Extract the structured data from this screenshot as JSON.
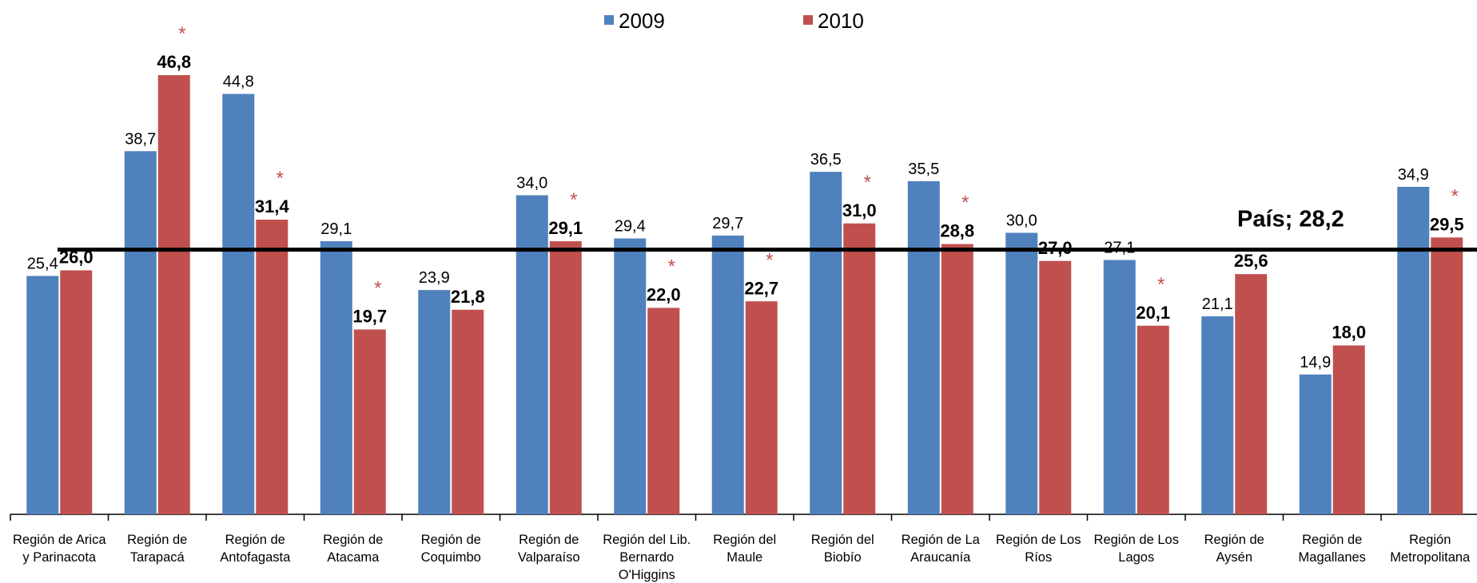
{
  "chart_data": {
    "type": "bar",
    "categories": [
      [
        "Región de Arica",
        "y Parinacota"
      ],
      [
        "Región de",
        "Tarapacá"
      ],
      [
        "Región de",
        "Antofagasta"
      ],
      [
        "Región de",
        "Atacama"
      ],
      [
        "Región de",
        "Coquimbo"
      ],
      [
        "Región de",
        "Valparaíso"
      ],
      [
        "Región del Lib.",
        "Bernardo",
        "O'Higgins"
      ],
      [
        "Región del",
        "Maule"
      ],
      [
        "Región del",
        "Biobío"
      ],
      [
        "Región de La",
        "Araucanía"
      ],
      [
        "Región de Los",
        "Ríos"
      ],
      [
        "Región de Los",
        "Lagos"
      ],
      [
        "Región de",
        "Aysén"
      ],
      [
        "Región de",
        "Magallanes"
      ],
      [
        "Región",
        "Metropolitana"
      ]
    ],
    "series": [
      {
        "name": "2009",
        "color": "#4f81bd",
        "values": [
          25.4,
          38.7,
          44.8,
          29.1,
          23.9,
          34.0,
          29.4,
          29.7,
          36.5,
          35.5,
          30.0,
          27.1,
          21.1,
          14.9,
          34.9
        ],
        "labels": [
          "25,4",
          "38,7",
          "44,8",
          "29,1",
          "23,9",
          "34,0",
          "29,4",
          "29,7",
          "36,5",
          "35,5",
          "30,0",
          "27,1",
          "21,1",
          "14,9",
          "34,9"
        ]
      },
      {
        "name": "2010",
        "color": "#c0504d",
        "values": [
          26.0,
          46.8,
          31.4,
          19.7,
          21.8,
          29.1,
          22.0,
          22.7,
          31.0,
          28.8,
          27.0,
          20.1,
          25.6,
          18.0,
          29.5
        ],
        "labels": [
          "26,0",
          "46,8",
          "31,4",
          "19,7",
          "21,8",
          "29,1",
          "22,0",
          "22,7",
          "31,0",
          "28,8",
          "27,0",
          "20,1",
          "25,6",
          "18,0",
          "29,5"
        ]
      }
    ],
    "significance_marker": "*",
    "significant": [
      false,
      true,
      true,
      true,
      false,
      true,
      true,
      true,
      true,
      true,
      false,
      true,
      false,
      false,
      true
    ],
    "reference_line": {
      "label": "País; 28,2",
      "value": 28.2,
      "color": "#000000"
    },
    "ylim": [
      0,
      50
    ],
    "grid": false,
    "legend_position": "top-center",
    "title": "",
    "xlabel": "",
    "ylabel": ""
  }
}
